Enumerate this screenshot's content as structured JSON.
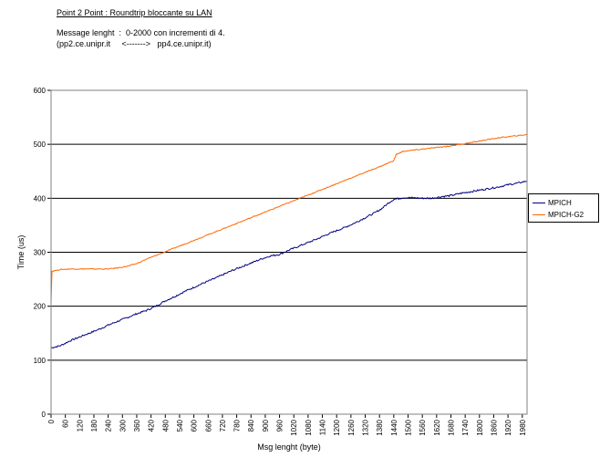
{
  "header": {
    "title": "Point 2 Point  :  Roundtrip bloccante su LAN",
    "line1": "Message lenght  :  0-2000 con incrementi di 4.",
    "line2": "(pp2.ce.unipr.it     <------->   pp4.ce.unipr.it)"
  },
  "chart_data": {
    "type": "line",
    "xlabel": "Msg lenght (byte)",
    "ylabel": "Time (us)",
    "xlim": [
      0,
      2000
    ],
    "ylim": [
      0,
      600
    ],
    "yticks": [
      0,
      100,
      200,
      300,
      400,
      500,
      600
    ],
    "xtick_step": 60,
    "xtick_max": 1980,
    "grid": "horizontal major",
    "legend_position": "right",
    "series": [
      {
        "name": "MPICH",
        "color": "#000080",
        "points": [
          [
            0,
            123
          ],
          [
            40,
            127
          ],
          [
            80,
            136
          ],
          [
            120,
            143
          ],
          [
            160,
            150
          ],
          [
            200,
            157
          ],
          [
            240,
            165
          ],
          [
            280,
            172
          ],
          [
            320,
            179
          ],
          [
            360,
            186
          ],
          [
            400,
            192
          ],
          [
            440,
            200
          ],
          [
            480,
            210
          ],
          [
            520,
            218
          ],
          [
            560,
            227
          ],
          [
            600,
            235
          ],
          [
            640,
            243
          ],
          [
            680,
            250
          ],
          [
            720,
            258
          ],
          [
            760,
            266
          ],
          [
            800,
            273
          ],
          [
            840,
            280
          ],
          [
            880,
            287
          ],
          [
            920,
            293
          ],
          [
            960,
            296
          ],
          [
            1000,
            304
          ],
          [
            1040,
            311
          ],
          [
            1080,
            318
          ],
          [
            1120,
            325
          ],
          [
            1160,
            333
          ],
          [
            1200,
            340
          ],
          [
            1240,
            347
          ],
          [
            1280,
            355
          ],
          [
            1320,
            364
          ],
          [
            1360,
            373
          ],
          [
            1390,
            381
          ],
          [
            1400,
            385
          ],
          [
            1420,
            392
          ],
          [
            1440,
            398
          ],
          [
            1480,
            401
          ],
          [
            1520,
            401
          ],
          [
            1560,
            400
          ],
          [
            1600,
            400
          ],
          [
            1640,
            403
          ],
          [
            1680,
            405
          ],
          [
            1720,
            409
          ],
          [
            1760,
            412
          ],
          [
            1800,
            415
          ],
          [
            1840,
            418
          ],
          [
            1880,
            421
          ],
          [
            1920,
            425
          ],
          [
            1960,
            428
          ],
          [
            2000,
            432
          ]
        ]
      },
      {
        "name": "MPICH-G2",
        "color": "#FF6600",
        "points": [
          [
            0,
            210
          ],
          [
            4,
            265
          ],
          [
            40,
            268
          ],
          [
            80,
            269
          ],
          [
            120,
            269
          ],
          [
            160,
            269
          ],
          [
            200,
            269
          ],
          [
            240,
            269
          ],
          [
            280,
            271
          ],
          [
            320,
            274
          ],
          [
            360,
            279
          ],
          [
            400,
            287
          ],
          [
            440,
            294
          ],
          [
            480,
            301
          ],
          [
            520,
            308
          ],
          [
            560,
            315
          ],
          [
            600,
            322
          ],
          [
            640,
            329
          ],
          [
            680,
            336
          ],
          [
            720,
            343
          ],
          [
            760,
            350
          ],
          [
            800,
            357
          ],
          [
            840,
            364
          ],
          [
            880,
            371
          ],
          [
            920,
            378
          ],
          [
            960,
            385
          ],
          [
            1000,
            392
          ],
          [
            1040,
            399
          ],
          [
            1080,
            406
          ],
          [
            1120,
            413
          ],
          [
            1160,
            420
          ],
          [
            1200,
            427
          ],
          [
            1240,
            434
          ],
          [
            1280,
            441
          ],
          [
            1320,
            448
          ],
          [
            1360,
            455
          ],
          [
            1400,
            462
          ],
          [
            1440,
            470
          ],
          [
            1450,
            481
          ],
          [
            1480,
            487
          ],
          [
            1520,
            489
          ],
          [
            1560,
            491
          ],
          [
            1600,
            493
          ],
          [
            1640,
            495
          ],
          [
            1680,
            497
          ],
          [
            1720,
            500
          ],
          [
            1760,
            503
          ],
          [
            1800,
            506
          ],
          [
            1840,
            509
          ],
          [
            1880,
            512
          ],
          [
            1920,
            514
          ],
          [
            1960,
            516
          ],
          [
            2000,
            518
          ]
        ]
      }
    ]
  }
}
